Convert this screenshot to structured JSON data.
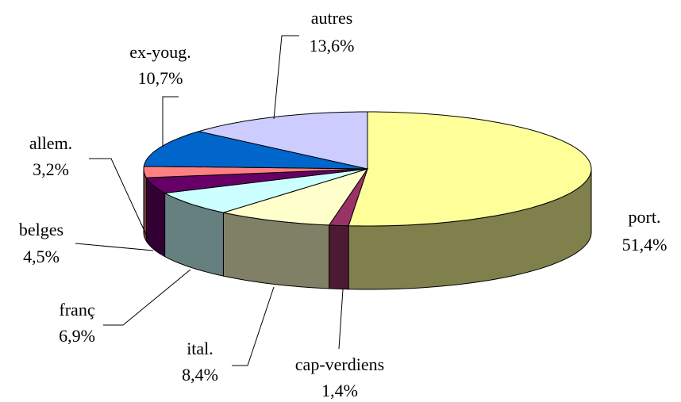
{
  "chart_data": {
    "type": "pie",
    "categories": [
      "port.",
      "cap-verdiens",
      "ital.",
      "franç",
      "belges",
      "allem.",
      "ex-youg.",
      "autres"
    ],
    "values": [
      51.4,
      1.4,
      8.4,
      6.9,
      4.5,
      3.2,
      10.7,
      13.6
    ],
    "value_labels": [
      "51,4%",
      "1,4%",
      "8,4%",
      "6,9%",
      "4,5%",
      "3,2%",
      "10,7%",
      "13,6%"
    ],
    "colors": [
      "#ffff99",
      "#993366",
      "#ffffcc",
      "#ccffff",
      "#660066",
      "#ff8080",
      "#0066cc",
      "#ccccff"
    ]
  }
}
